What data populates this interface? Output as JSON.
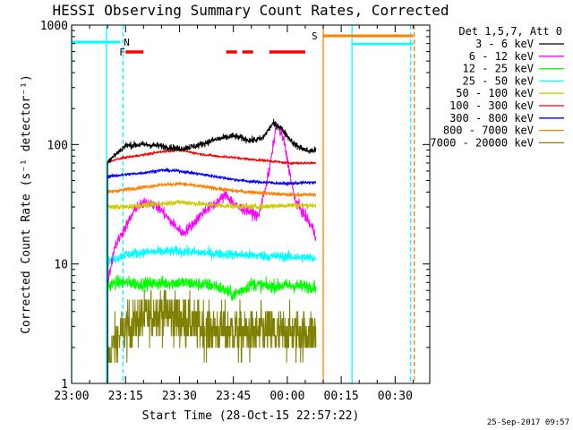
{
  "chart_data": {
    "type": "line",
    "title": "HESSI Observing Summary Count Rates, Corrected",
    "xlabel": "Start Time (28-Oct-15 22:57:22)",
    "ylabel": "Corrected Count Rate (s⁻¹ detector⁻¹)",
    "y_scale": "log",
    "ylim": [
      1,
      1000
    ],
    "xlim": [
      "22:57:22",
      "00:37:00"
    ],
    "x_tick_labels": [
      "23:00",
      "23:15",
      "23:30",
      "23:45",
      "00:00",
      "00:15",
      "00:30"
    ],
    "x_tick_minutes": [
      0,
      15,
      30,
      45,
      60,
      75,
      90
    ],
    "y_tick_labels": [
      "1",
      "10",
      "100",
      "1000"
    ],
    "y_tick_values": [
      1,
      10,
      100,
      1000
    ],
    "legend_header": "Det 1,5,7, Att 0",
    "legend_position": "outside-right",
    "timestamp": "25-Sep-2017 09:57",
    "data_start_min": 10,
    "data_end_min": 68,
    "series": [
      {
        "name": "3 - 6 keV",
        "color": "#000000",
        "times_min": [
          10,
          15,
          20,
          25,
          30,
          35,
          40,
          45,
          50,
          53,
          56,
          58,
          60,
          62,
          64,
          66,
          68
        ],
        "values": [
          72,
          98,
          100,
          97,
          92,
          98,
          110,
          118,
          108,
          112,
          150,
          140,
          118,
          100,
          93,
          88,
          90
        ],
        "noise": 0.06
      },
      {
        "name": "6 - 12 keV",
        "color": "#ff00ff",
        "times_min": [
          10,
          12,
          14,
          16,
          18,
          20,
          22,
          25,
          28,
          31,
          34,
          37,
          40,
          43,
          46,
          49,
          52,
          55,
          57,
          59,
          62,
          65,
          67,
          68
        ],
        "values": [
          7,
          14,
          18,
          23,
          30,
          32,
          33,
          28,
          22,
          18,
          22,
          28,
          32,
          38,
          30,
          28,
          25,
          60,
          150,
          110,
          35,
          25,
          20,
          17
        ],
        "noise": 0.1
      },
      {
        "name": "12 - 25 keV",
        "color": "#00ff00",
        "times_min": [
          10,
          12,
          15,
          20,
          30,
          40,
          45,
          48,
          50,
          55,
          60,
          65,
          68
        ],
        "values": [
          6.5,
          7,
          7,
          6.8,
          7,
          6.6,
          5.5,
          6.2,
          6.8,
          6.5,
          6.6,
          6.5,
          6.5
        ],
        "noise": 0.12
      },
      {
        "name": "25 - 50 keV",
        "color": "#00ffff",
        "times_min": [
          10,
          15,
          20,
          30,
          40,
          50,
          60,
          68
        ],
        "values": [
          10.5,
          12,
          12.5,
          12.8,
          12.2,
          11.8,
          11.5,
          11.2
        ],
        "noise": 0.09
      },
      {
        "name": "50 - 100 keV",
        "color": "#cccc00",
        "times_min": [
          10,
          15,
          20,
          30,
          40,
          50,
          60,
          68
        ],
        "values": [
          30,
          30,
          31,
          33,
          31,
          30,
          31,
          31
        ],
        "noise": 0.05
      },
      {
        "name": "100 - 300 keV",
        "color": "#ff0000",
        "times_min": [
          10,
          15,
          20,
          25,
          30,
          35,
          40,
          45,
          50,
          55,
          60,
          65,
          68
        ],
        "values": [
          72,
          78,
          82,
          87,
          90,
          84,
          80,
          78,
          75,
          73,
          70,
          70,
          70
        ],
        "noise": 0.025
      },
      {
        "name": "300 - 800 keV",
        "color": "#0000ff",
        "times_min": [
          10,
          15,
          20,
          25,
          30,
          35,
          40,
          45,
          50,
          55,
          60,
          65,
          68
        ],
        "values": [
          54,
          56,
          58,
          61,
          60,
          57,
          54,
          51,
          49,
          48,
          47,
          48,
          48
        ],
        "noise": 0.03
      },
      {
        "name": "800 - 7000 keV",
        "color": "#ff8000",
        "times_min": [
          10,
          15,
          20,
          25,
          30,
          35,
          40,
          45,
          50,
          55,
          60,
          65,
          68
        ],
        "values": [
          40,
          42,
          44,
          46,
          47,
          45,
          43,
          41,
          40,
          39,
          38,
          38,
          38
        ],
        "noise": 0.035
      },
      {
        "name": "7000 - 20000 keV",
        "color": "#808000",
        "times_min": [
          10,
          12,
          15,
          20,
          25,
          30,
          35,
          40,
          45,
          50,
          55,
          60,
          65,
          68
        ],
        "values": [
          1.5,
          2.2,
          2.8,
          3.5,
          4,
          3.5,
          3,
          2.8,
          2.7,
          2.6,
          2.7,
          2.6,
          2.6,
          2.6
        ],
        "noise": 0.22
      }
    ],
    "annotations": [
      {
        "text": "N",
        "type": "saa",
        "color": "#00ffff",
        "bar_min": [
          0,
          13.5
        ]
      },
      {
        "text": "F",
        "type": "flare",
        "color": "#ff0000",
        "bars_min": [
          [
            15,
            20
          ],
          [
            43,
            46
          ],
          [
            47.5,
            50.5
          ],
          [
            55,
            65
          ]
        ]
      },
      {
        "text": "S",
        "type": "saa",
        "color": "#ff8000",
        "bar_min": [
          70,
          95
        ]
      }
    ],
    "night_bars": [
      {
        "color": "#00ffff",
        "bar_min": [
          78,
          95
        ]
      }
    ],
    "vertical_lines": [
      {
        "minute": 0,
        "color": "#00ffff",
        "style": "solid"
      },
      {
        "minute": 9.7,
        "color": "#00ffff",
        "style": "solid"
      },
      {
        "minute": 14.3,
        "color": "#00ffff",
        "style": "dashed"
      },
      {
        "minute": 70,
        "color": "#ff8000",
        "style": "solid"
      },
      {
        "minute": 78,
        "color": "#00ffff",
        "style": "solid"
      },
      {
        "minute": 94.3,
        "color": "#00ffff",
        "style": "dashed"
      },
      {
        "minute": 95.3,
        "color": "#ff8000",
        "style": "dashed"
      }
    ]
  }
}
